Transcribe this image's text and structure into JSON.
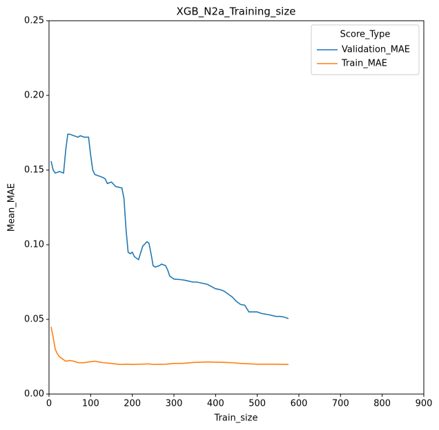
{
  "chart_data": {
    "type": "line",
    "title": "XGB_N2a_Training_size",
    "xlabel": "Train_size",
    "ylabel": "Mean_MAE",
    "legend_title": "Score_Type",
    "legend": "upper right",
    "xlim": [
      0,
      900
    ],
    "xticks": [
      0,
      100,
      200,
      300,
      400,
      500,
      600,
      700,
      800,
      900
    ],
    "ylim": [
      0,
      0.25
    ],
    "yticks": [
      {
        "value": 0,
        "label": "0.00"
      },
      {
        "value": 0.05,
        "label": "0.05"
      },
      {
        "value": 0.1,
        "label": "0.10"
      },
      {
        "value": 0.15,
        "label": "0.15"
      },
      {
        "value": 0.2,
        "label": "0.20"
      },
      {
        "value": 0.25,
        "label": "0.25"
      }
    ],
    "series": [
      {
        "name": "Validation_MAE",
        "color": "#1f77b4",
        "x": [
          5,
          10,
          15,
          25,
          35,
          40,
          45,
          50,
          60,
          70,
          75,
          85,
          95,
          100,
          105,
          110,
          120,
          130,
          135,
          140,
          150,
          160,
          175,
          180,
          185,
          190,
          195,
          200,
          205,
          215,
          225,
          235,
          240,
          245,
          250,
          255,
          265,
          270,
          280,
          285,
          290,
          300,
          320,
          330,
          345,
          355,
          380,
          390,
          400,
          410,
          420,
          430,
          440,
          450,
          460,
          470,
          480,
          500,
          510,
          530,
          545,
          555,
          565,
          575
        ],
        "values": [
          0.156,
          0.15,
          0.148,
          0.149,
          0.148,
          0.163,
          0.174,
          0.174,
          0.173,
          0.172,
          0.173,
          0.172,
          0.172,
          0.16,
          0.15,
          0.147,
          0.146,
          0.145,
          0.144,
          0.141,
          0.142,
          0.139,
          0.138,
          0.131,
          0.11,
          0.095,
          0.094,
          0.095,
          0.092,
          0.09,
          0.099,
          0.102,
          0.101,
          0.094,
          0.086,
          0.085,
          0.086,
          0.087,
          0.086,
          0.083,
          0.079,
          0.077,
          0.0765,
          0.076,
          0.075,
          0.075,
          0.0735,
          0.072,
          0.0705,
          0.07,
          0.069,
          0.067,
          0.065,
          0.062,
          0.06,
          0.0595,
          0.055,
          0.055,
          0.054,
          0.053,
          0.052,
          0.052,
          0.0515,
          0.0505
        ]
      },
      {
        "name": "Train_MAE",
        "color": "#ff7f0e",
        "x": [
          5,
          10,
          15,
          20,
          25,
          35,
          40,
          50,
          60,
          70,
          85,
          95,
          110,
          120,
          130,
          150,
          170,
          190,
          200,
          240,
          250,
          280,
          300,
          320,
          350,
          380,
          420,
          440,
          460,
          500,
          540,
          575
        ],
        "values": [
          0.045,
          0.038,
          0.03,
          0.027,
          0.025,
          0.023,
          0.022,
          0.0225,
          0.022,
          0.021,
          0.021,
          0.0215,
          0.022,
          0.0215,
          0.021,
          0.0205,
          0.0198,
          0.02,
          0.0198,
          0.0202,
          0.0198,
          0.02,
          0.0205,
          0.0205,
          0.0212,
          0.0215,
          0.0212,
          0.021,
          0.0205,
          0.02,
          0.02,
          0.0198
        ]
      }
    ]
  }
}
